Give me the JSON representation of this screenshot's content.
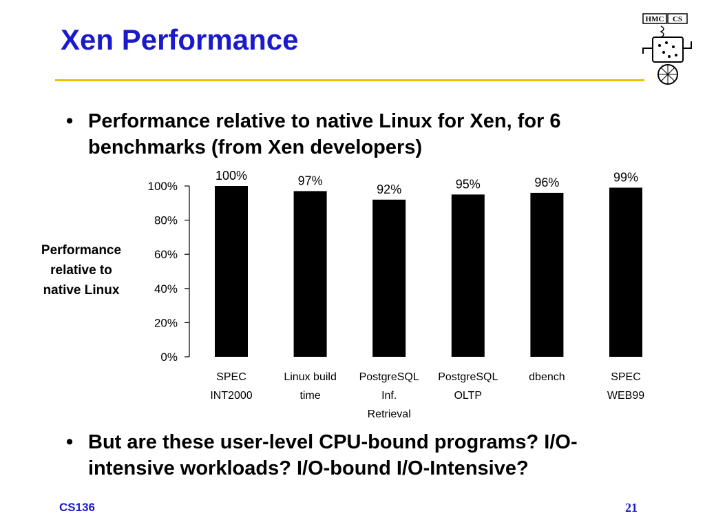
{
  "slide": {
    "title": "Xen Performance",
    "bullet_symbol": "•",
    "bullets": [
      "Performance relative to native Linux for Xen, for 6 benchmarks (from Xen developers)",
      "But are these user-level CPU-bound programs? I/O-intensive workloads? I/O-bound I/O-Intensive?"
    ],
    "footer_left": "CS136",
    "page_number": "21",
    "logo_text": "HMC CS"
  },
  "chart_data": {
    "type": "bar",
    "categories": [
      [
        "SPEC",
        "INT2000"
      ],
      [
        "Linux build",
        "time"
      ],
      [
        "PostgreSQL",
        "Inf.",
        "Retrieval"
      ],
      [
        "PostgreSQL",
        "OLTP"
      ],
      [
        "dbench"
      ],
      [
        "SPEC",
        "WEB99"
      ]
    ],
    "values": [
      100,
      97,
      92,
      95,
      96,
      99
    ],
    "data_labels": [
      "100%",
      "97%",
      "92%",
      "95%",
      "96%",
      "99%"
    ],
    "ylabel_lines": [
      "Performance",
      "relative to",
      "native Linux"
    ],
    "yticks": [
      0,
      20,
      40,
      60,
      80,
      100
    ],
    "ytick_labels": [
      "0%",
      "20%",
      "40%",
      "60%",
      "80%",
      "100%"
    ],
    "ylim": [
      0,
      100
    ],
    "bar_color": "#000000",
    "grid": false,
    "legend": "none"
  }
}
